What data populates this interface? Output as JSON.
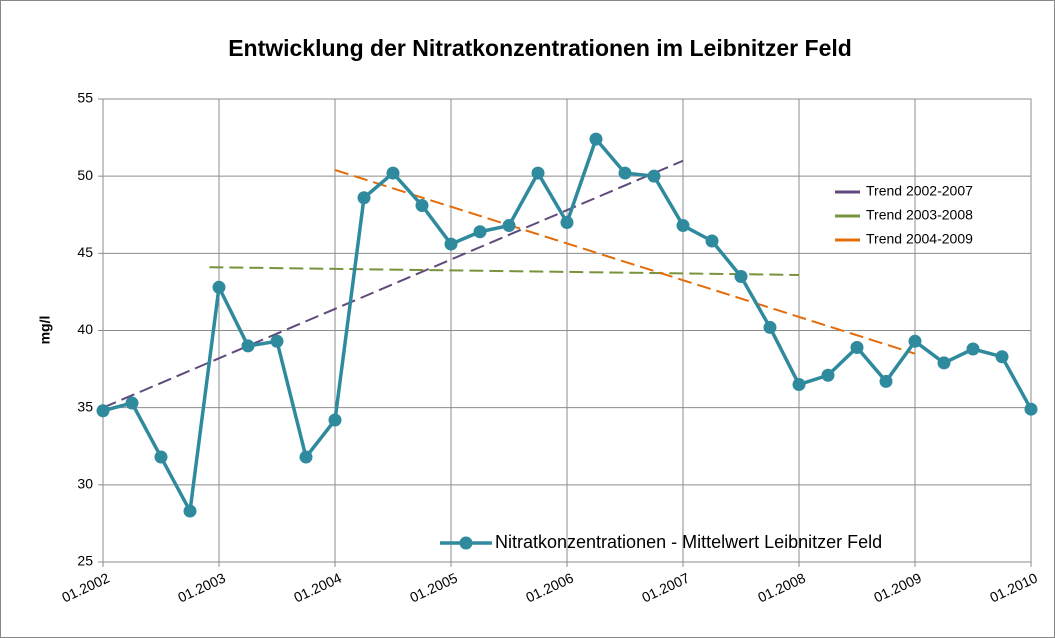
{
  "chart_data": {
    "type": "line",
    "title": "Entwicklung der Nitratkonzentrationen  im Leibnitzer Feld",
    "y_label": "mg/l",
    "x": [
      "01.2002",
      "04.2002",
      "07.2002",
      "10.2002",
      "01.2003",
      "04.2003",
      "07.2003",
      "10.2003",
      "01.2004",
      "04.2004",
      "07.2004",
      "10.2004",
      "01.2005",
      "04.2005",
      "07.2005",
      "10.2005",
      "01.2006",
      "04.2006",
      "07.2006",
      "10.2006",
      "01.2007",
      "04.2007",
      "07.2007",
      "10.2007",
      "01.2008",
      "04.2008",
      "07.2008",
      "10.2008",
      "01.2009",
      "04.2009",
      "07.2009",
      "10.2009",
      "01.2010"
    ],
    "series": [
      {
        "name": "Nitratkonzentrationen - Mittelwert Leibnitzer Feld",
        "color": "#2f8a9e",
        "values": [
          34.8,
          35.3,
          31.8,
          28.3,
          42.8,
          39.0,
          39.3,
          31.8,
          34.2,
          48.6,
          50.2,
          48.1,
          45.6,
          46.4,
          46.8,
          50.2,
          47.0,
          52.4,
          50.2,
          50.0,
          46.8,
          45.8,
          43.5,
          40.2,
          36.5,
          37.1,
          38.9,
          36.7,
          39.3,
          37.9,
          38.8,
          38.3,
          34.9
        ]
      }
    ],
    "trends": [
      {
        "name": "Trend 2002-2007",
        "color": "#604a7b",
        "x": [
          "01.2002",
          "01.2007"
        ],
        "values": [
          35.0,
          51.0
        ]
      },
      {
        "name": "Trend 2003-2008",
        "color": "#77933c",
        "x": [
          "12.2002",
          "01.2008"
        ],
        "values": [
          44.1,
          43.6
        ]
      },
      {
        "name": "Trend 2004-2009",
        "color": "#e46c0a",
        "x": [
          "01.2004",
          "01.2009"
        ],
        "values": [
          50.4,
          38.5
        ]
      }
    ],
    "xlim": [
      "01.2002",
      "01.2010"
    ],
    "xticks": [
      "01.2002",
      "01.2003",
      "01.2004",
      "01.2005",
      "01.2006",
      "01.2007",
      "01.2008",
      "01.2009",
      "01.2010"
    ],
    "ylim": [
      25,
      55
    ],
    "yticks": [
      25,
      30,
      35,
      40,
      45,
      50,
      55
    ],
    "grid": true
  }
}
